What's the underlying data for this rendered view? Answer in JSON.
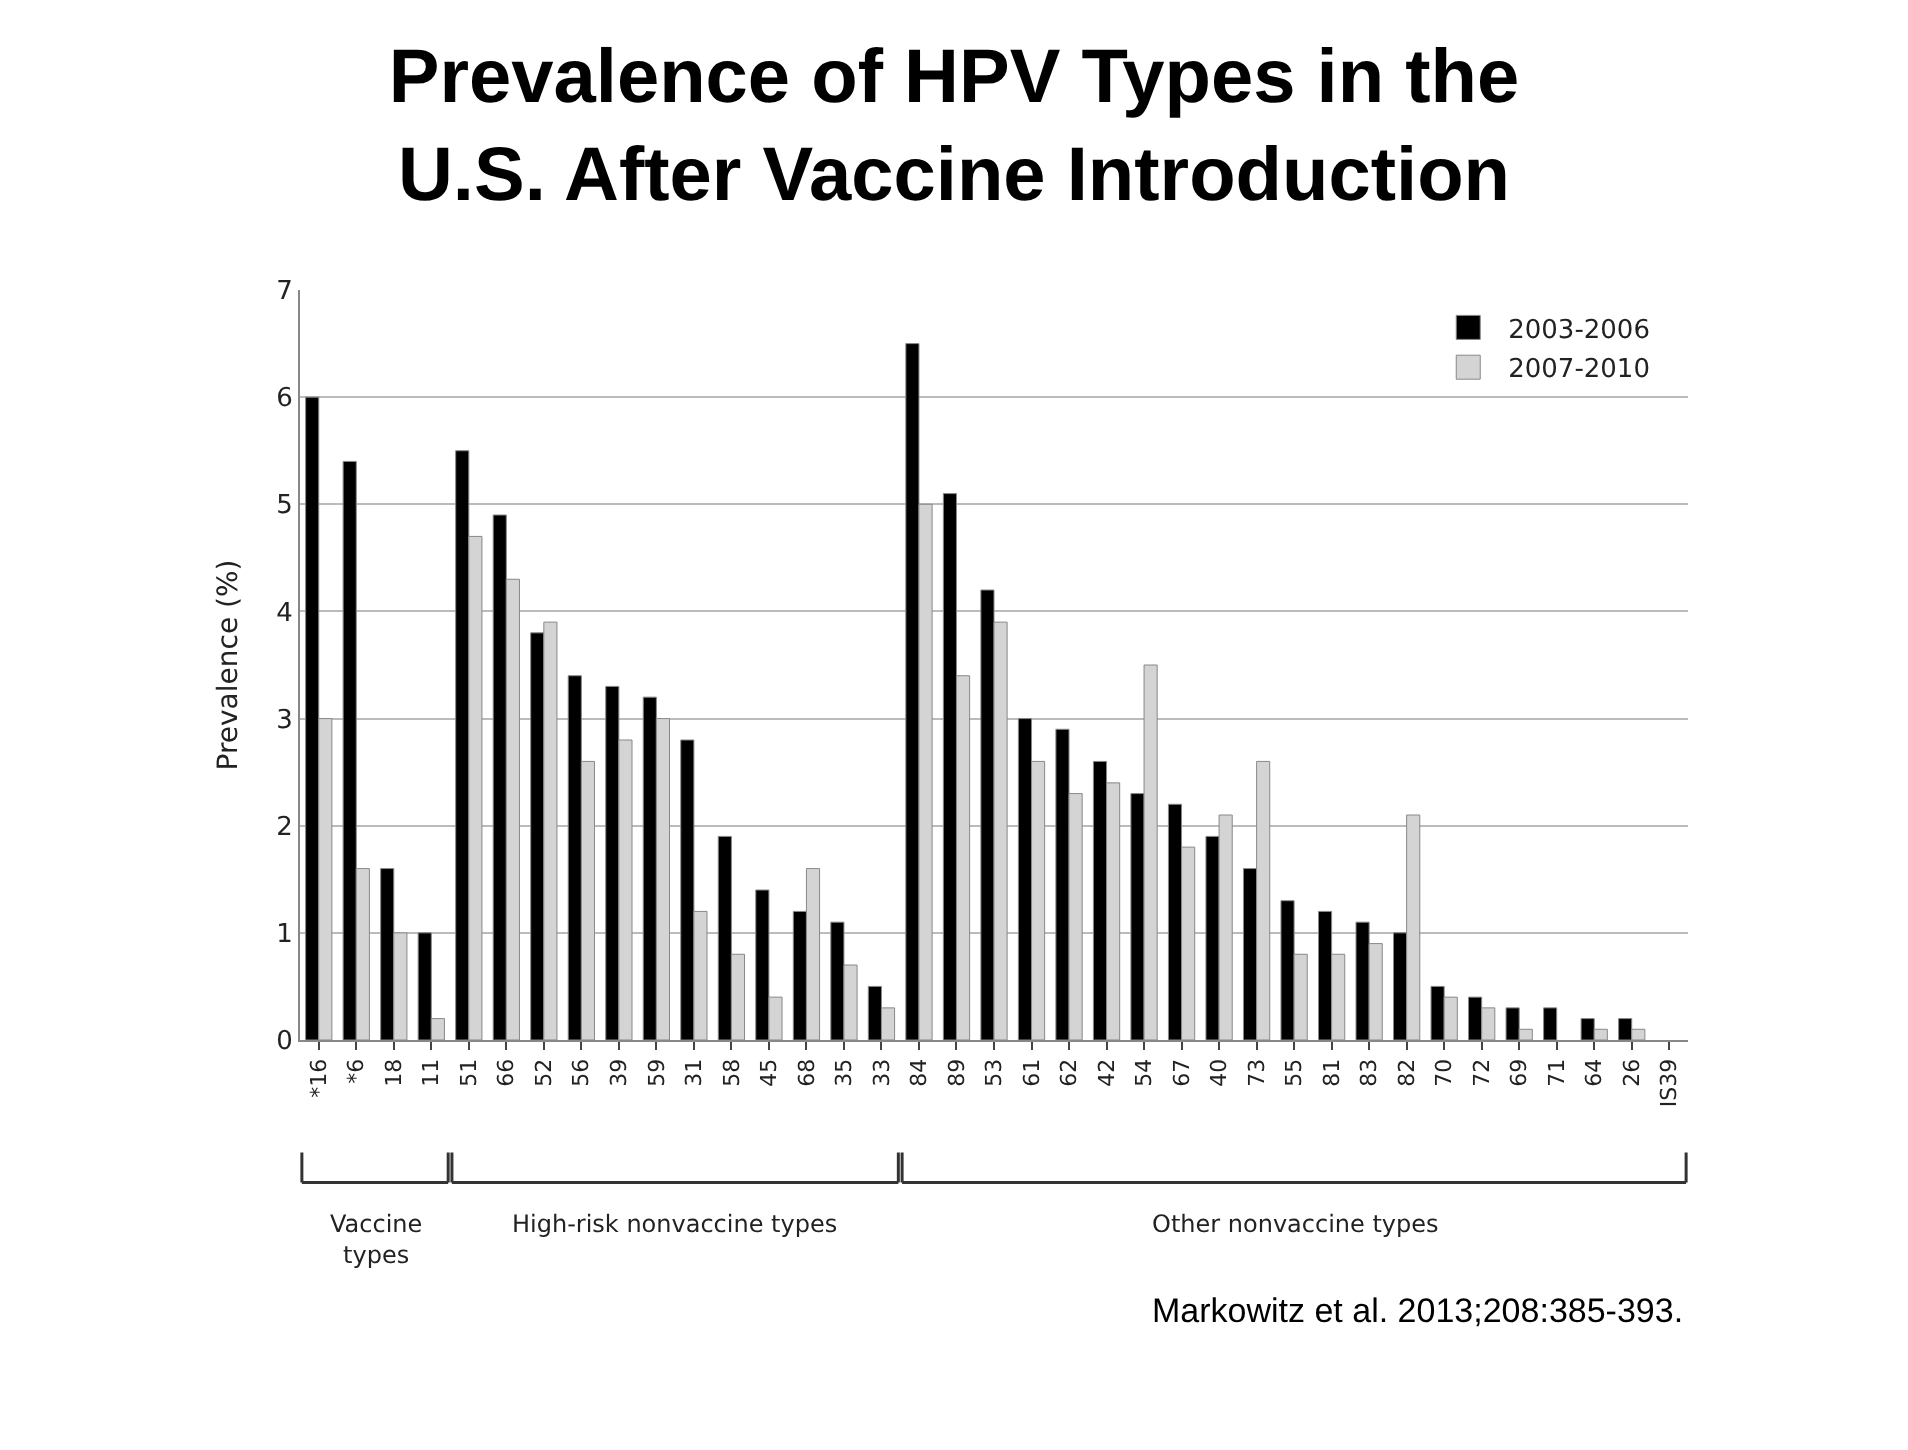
{
  "chart_data": {
    "type": "bar",
    "title": "Prevalence of HPV Types in the\nU.S. After Vaccine Introduction",
    "ylabel": "Prevalence (%)",
    "categories": [
      "*16",
      "*6",
      "18",
      "11",
      "51",
      "66",
      "52",
      "56",
      "39",
      "59",
      "31",
      "58",
      "45",
      "68",
      "35",
      "33",
      "84",
      "89",
      "53",
      "61",
      "62",
      "42",
      "54",
      "67",
      "40",
      "73",
      "55",
      "81",
      "83",
      "82",
      "70",
      "72",
      "69",
      "71",
      "64",
      "26",
      "IS39"
    ],
    "series": [
      {
        "name": "2003-2006",
        "color": "#000000",
        "values": [
          6.0,
          5.4,
          1.6,
          1.0,
          5.5,
          4.9,
          3.8,
          3.4,
          3.3,
          3.2,
          2.8,
          1.9,
          1.4,
          1.2,
          1.1,
          0.5,
          6.5,
          5.1,
          4.2,
          3.0,
          2.9,
          2.6,
          2.3,
          2.2,
          1.9,
          1.6,
          1.3,
          1.2,
          1.1,
          1.0,
          0.5,
          0.4,
          0.3,
          0.3,
          0.2,
          0.2,
          null
        ]
      },
      {
        "name": "2007-2010",
        "color": "#d4d4d4",
        "values": [
          3.0,
          1.6,
          1.0,
          0.2,
          4.7,
          4.3,
          3.9,
          2.6,
          2.8,
          3.0,
          1.2,
          0.8,
          0.4,
          1.6,
          0.7,
          0.3,
          5.0,
          3.4,
          3.9,
          2.6,
          2.3,
          2.4,
          3.5,
          1.8,
          2.1,
          2.6,
          0.8,
          0.8,
          0.9,
          2.1,
          0.4,
          0.3,
          0.1,
          null,
          0.1,
          0.1,
          null
        ]
      }
    ],
    "ylim": [
      0,
      7
    ],
    "yticks": [
      0,
      1,
      2,
      3,
      4,
      5,
      6,
      7
    ],
    "grid": "y",
    "legend": "top right",
    "annotations": [
      "Vaccine\ntypes",
      "High-risk nonvaccine types",
      "Other nonvaccine types",
      "Markowitz et al. 2013;208:385-393."
    ]
  }
}
